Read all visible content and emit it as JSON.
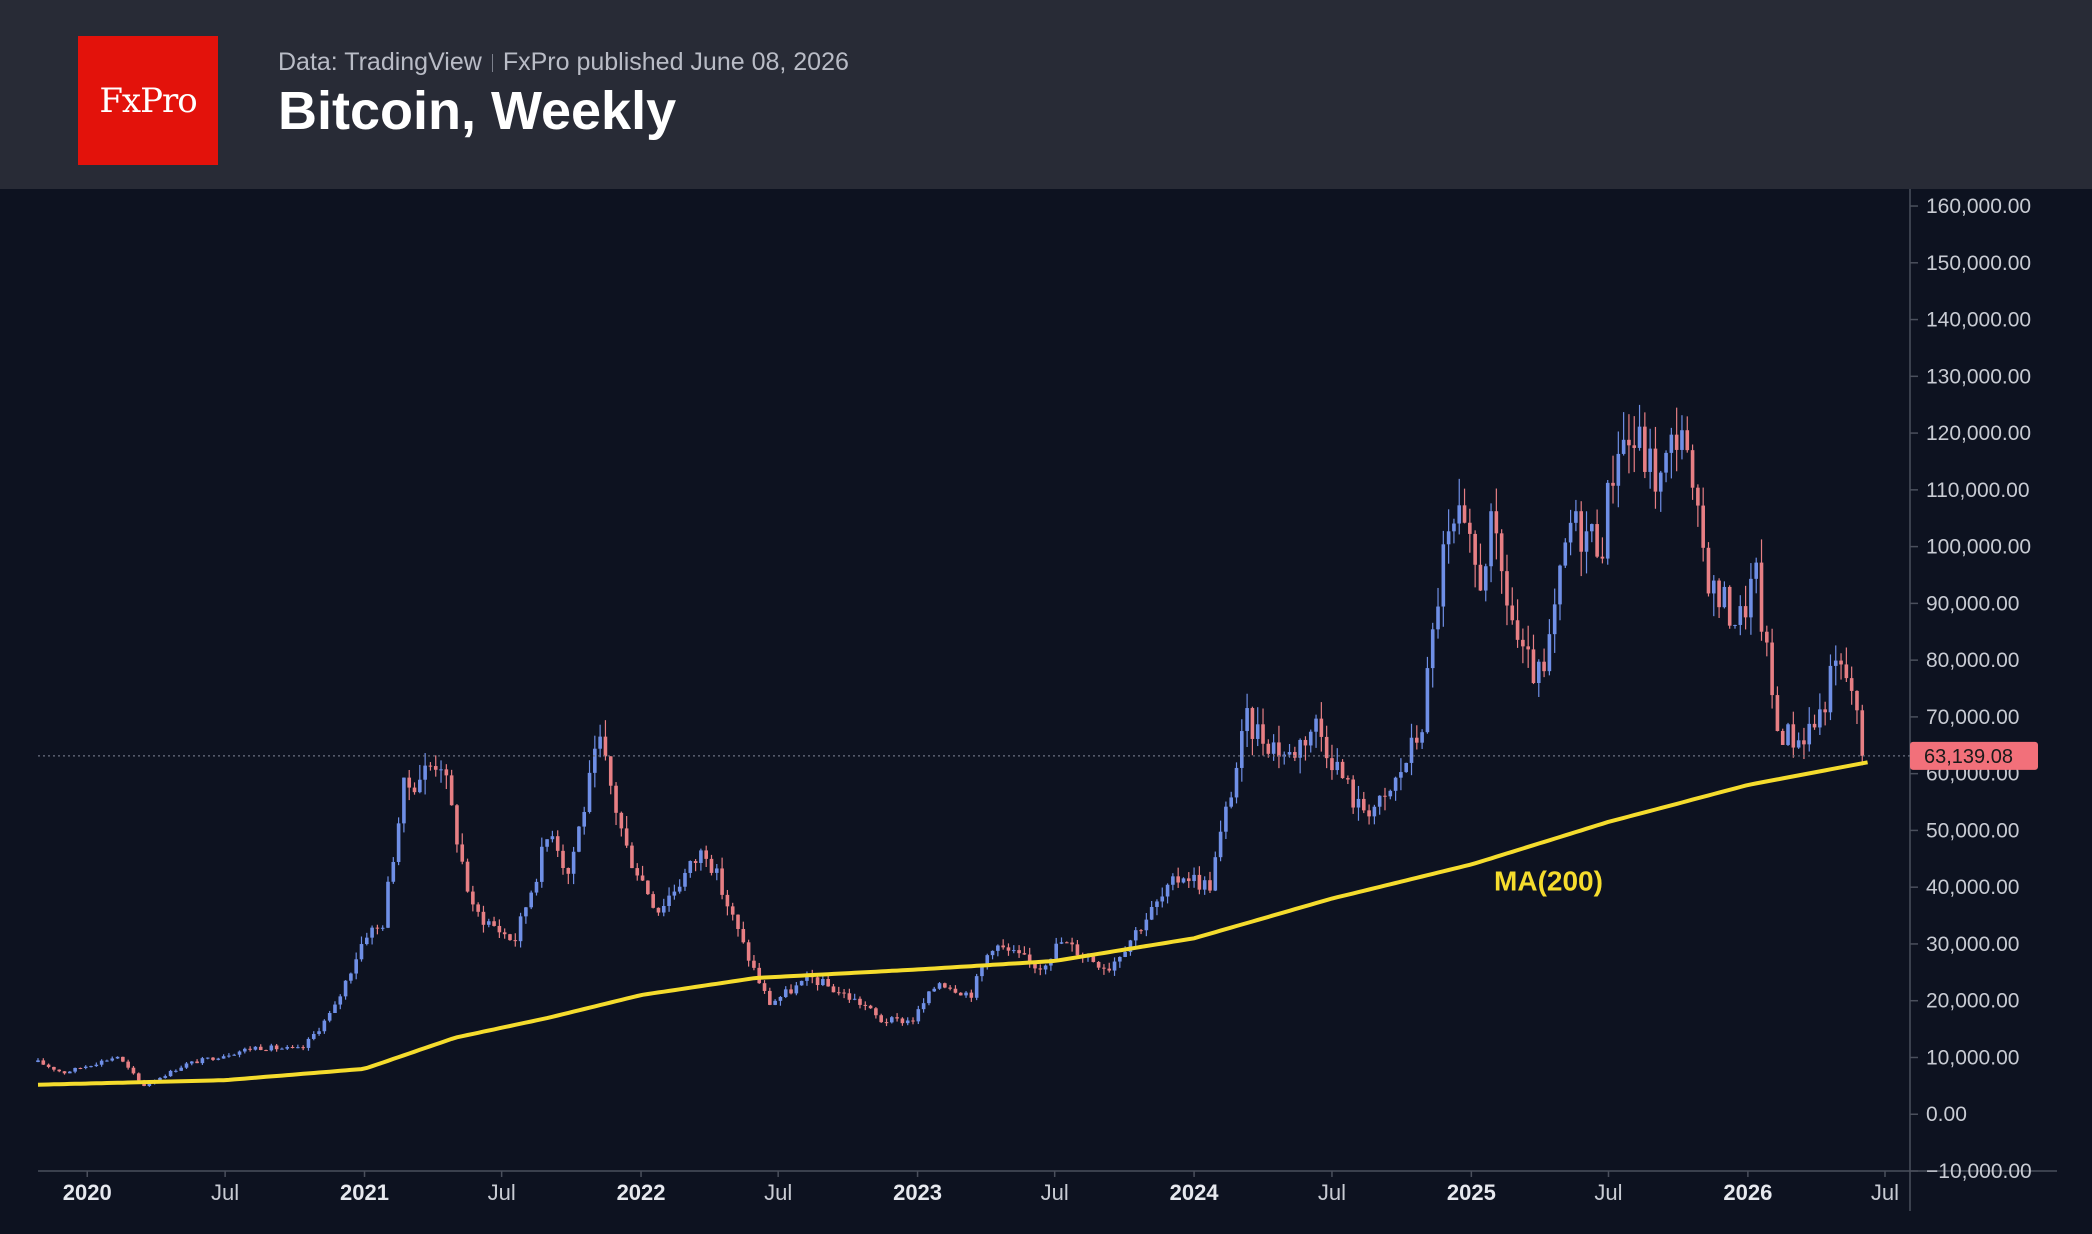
{
  "header": {
    "logo_text": "FxPro",
    "source": "Data: TradingView",
    "published": "FxPro published June 08, 2026",
    "title": "Bitcoin, Weekly"
  },
  "colors": {
    "background": "#0d1220",
    "header": "#282b36",
    "logo": "#e3120b",
    "up": "#6f8fe6",
    "down": "#e77f84",
    "ma": "#f5dc2d",
    "last_price_label": "#f2707a"
  },
  "chart_data": {
    "type": "candlestick",
    "title": "Bitcoin, Weekly",
    "x_tick_labels": [
      {
        "label": "2020",
        "date": "2020-01-01",
        "bold": true
      },
      {
        "label": "Jul",
        "date": "2020-07-01",
        "bold": false
      },
      {
        "label": "2021",
        "date": "2021-01-01",
        "bold": true
      },
      {
        "label": "Jul",
        "date": "2021-07-01",
        "bold": false
      },
      {
        "label": "2022",
        "date": "2022-01-01",
        "bold": true
      },
      {
        "label": "Jul",
        "date": "2022-07-01",
        "bold": false
      },
      {
        "label": "2023",
        "date": "2023-01-01",
        "bold": true
      },
      {
        "label": "Jul",
        "date": "2023-07-01",
        "bold": false
      },
      {
        "label": "2024",
        "date": "2024-01-01",
        "bold": true
      },
      {
        "label": "Jul",
        "date": "2024-07-01",
        "bold": false
      },
      {
        "label": "2025",
        "date": "2025-01-01",
        "bold": true
      },
      {
        "label": "Jul",
        "date": "2025-07-01",
        "bold": false
      },
      {
        "label": "2026",
        "date": "2026-01-01",
        "bold": true
      },
      {
        "label": "Jul",
        "date": "2026-07-01",
        "bold": false
      }
    ],
    "y_tick_labels": [
      "160,000.00",
      "150,000.00",
      "140,000.00",
      "130,000.00",
      "120,000.00",
      "110,000.00",
      "100,000.00",
      "90,000.00",
      "80,000.00",
      "70,000.00",
      "60,000.00",
      "50,000.00",
      "40,000.00",
      "30,000.00",
      "20,000.00",
      "10,000.00",
      "0.00",
      "−10,000.00"
    ],
    "y_tick_values": [
      160000,
      150000,
      140000,
      130000,
      120000,
      110000,
      100000,
      90000,
      80000,
      70000,
      60000,
      50000,
      40000,
      30000,
      20000,
      10000,
      0,
      -10000
    ],
    "ylim": [
      -10000,
      163000
    ],
    "xlim": [
      "2019-10-28",
      "2026-08-03"
    ],
    "last_price": 63139.08,
    "last_price_label": "63,139.08",
    "ma_label": "MA(200)",
    "price_path": [
      [
        "2019-10-28",
        9200
      ],
      [
        "2019-12-01",
        7300
      ],
      [
        "2020-02-10",
        10200
      ],
      [
        "2020-03-15",
        5000
      ],
      [
        "2020-05-10",
        8800
      ],
      [
        "2020-08-10",
        11800
      ],
      [
        "2020-10-10",
        11400
      ],
      [
        "2020-11-22",
        18500
      ],
      [
        "2021-01-03",
        32000
      ],
      [
        "2021-01-24",
        33000
      ],
      [
        "2021-02-21",
        57000
      ],
      [
        "2021-04-11",
        63000
      ],
      [
        "2021-05-23",
        36000
      ],
      [
        "2021-07-18",
        30500
      ],
      [
        "2021-09-05",
        51000
      ],
      [
        "2021-09-26",
        42000
      ],
      [
        "2021-11-07",
        65500
      ],
      [
        "2021-12-12",
        47000
      ],
      [
        "2022-01-23",
        36000
      ],
      [
        "2022-03-27",
        47000
      ],
      [
        "2022-05-15",
        30000
      ],
      [
        "2022-06-19",
        19500
      ],
      [
        "2022-08-14",
        24000
      ],
      [
        "2022-10-23",
        19200
      ],
      [
        "2022-11-13",
        16500
      ],
      [
        "2022-12-25",
        16500
      ],
      [
        "2023-01-29",
        23500
      ],
      [
        "2023-03-12",
        21000
      ],
      [
        "2023-04-09",
        30000
      ],
      [
        "2023-06-11",
        25900
      ],
      [
        "2023-07-09",
        30400
      ],
      [
        "2023-09-10",
        25800
      ],
      [
        "2023-10-29",
        34500
      ],
      [
        "2023-12-17",
        42500
      ],
      [
        "2024-01-21",
        40000
      ],
      [
        "2024-03-10",
        69000
      ],
      [
        "2024-05-05",
        63000
      ],
      [
        "2024-06-09",
        69000
      ],
      [
        "2024-08-04",
        54000
      ],
      [
        "2024-09-08",
        54500
      ],
      [
        "2024-10-27",
        68000
      ],
      [
        "2024-11-24",
        98000
      ],
      [
        "2024-12-15",
        104000
      ],
      [
        "2025-01-12",
        94000
      ],
      [
        "2025-01-26",
        103000
      ],
      [
        "2025-03-09",
        80000
      ],
      [
        "2025-04-06",
        76000
      ],
      [
        "2025-05-11",
        104000
      ],
      [
        "2025-06-22",
        101000
      ],
      [
        "2025-07-13",
        119000
      ],
      [
        "2025-08-10",
        118000
      ],
      [
        "2025-09-07",
        111000
      ],
      [
        "2025-10-05",
        123000
      ],
      [
        "2025-10-19",
        108000
      ],
      [
        "2025-11-16",
        92000
      ],
      [
        "2025-12-21",
        87000
      ],
      [
        "2026-01-11",
        95000
      ],
      [
        "2026-02-08",
        68000
      ],
      [
        "2026-03-08",
        66000
      ],
      [
        "2026-04-05",
        70000
      ],
      [
        "2026-04-26",
        79000
      ],
      [
        "2026-05-17",
        76000
      ],
      [
        "2026-06-01",
        63100
      ]
    ],
    "ma200_path": [
      [
        "2019-10-28",
        5200
      ],
      [
        "2020-07-01",
        6000
      ],
      [
        "2021-01-01",
        8000
      ],
      [
        "2021-05-01",
        13500
      ],
      [
        "2021-09-01",
        17000
      ],
      [
        "2022-01-01",
        21000
      ],
      [
        "2022-06-01",
        24000
      ],
      [
        "2023-01-01",
        25500
      ],
      [
        "2023-07-01",
        27000
      ],
      [
        "2024-01-01",
        31000
      ],
      [
        "2024-07-01",
        38000
      ],
      [
        "2025-01-01",
        44000
      ],
      [
        "2025-07-01",
        51500
      ],
      [
        "2026-01-01",
        58000
      ],
      [
        "2026-06-08",
        62000
      ]
    ]
  }
}
